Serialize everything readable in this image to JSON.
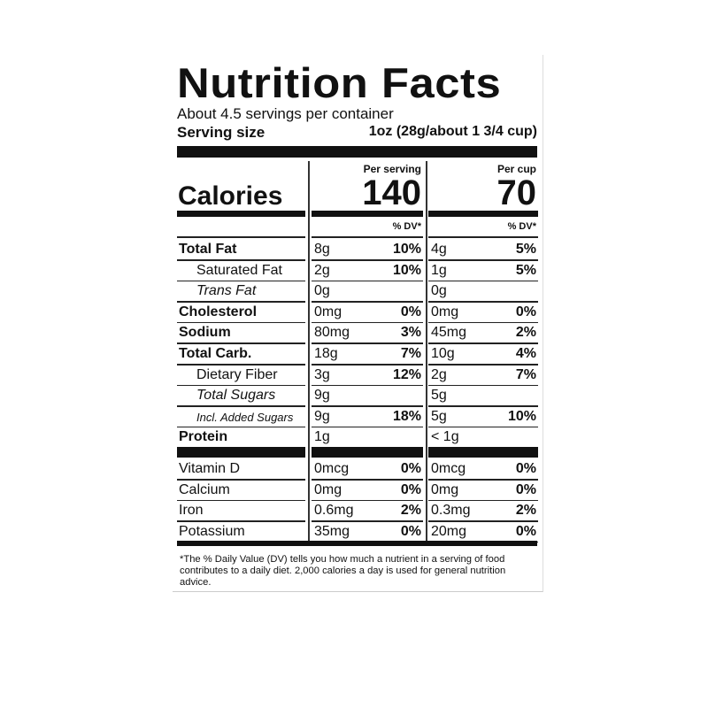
{
  "title": "Nutrition Facts",
  "servings": "About 4.5 servings per container",
  "serving_size_label": "Serving size",
  "serving_size": "1oz (28g/about 1 3/4 cup)",
  "calories_label": "Calories",
  "columns": [
    {
      "header": "Per serving",
      "calories": "140",
      "dv_header": "% DV*"
    },
    {
      "header": "Per cup",
      "calories": "70",
      "dv_header": "% DV*"
    }
  ],
  "rows": [
    {
      "name": "Total Fat",
      "style": "bold",
      "cells": [
        {
          "amount": "8g",
          "dv": "10%"
        },
        {
          "amount": "4g",
          "dv": "5%"
        }
      ]
    },
    {
      "name": "Saturated Fat",
      "style": "indent",
      "cells": [
        {
          "amount": "2g",
          "dv": "10%"
        },
        {
          "amount": "1g",
          "dv": "5%"
        }
      ]
    },
    {
      "name": "Trans Fat",
      "style": "indent-italic",
      "cells": [
        {
          "amount": "0g"
        },
        {
          "amount": "0g"
        }
      ]
    },
    {
      "name": "Cholesterol",
      "style": "bold",
      "cells": [
        {
          "amount": "0mg",
          "dv": "0%"
        },
        {
          "amount": "0mg",
          "dv": "0%"
        }
      ]
    },
    {
      "name": "Sodium",
      "style": "bold",
      "cells": [
        {
          "amount": "80mg",
          "dv": "3%"
        },
        {
          "amount": "45mg",
          "dv": "2%"
        }
      ]
    },
    {
      "name": "Total Carb.",
      "style": "bold",
      "cells": [
        {
          "amount": "18g",
          "dv": "7%"
        },
        {
          "amount": "10g",
          "dv": "4%"
        }
      ]
    },
    {
      "name": "Dietary Fiber",
      "style": "indent",
      "cells": [
        {
          "amount": "3g",
          "dv": "12%"
        },
        {
          "amount": "2g",
          "dv": "7%"
        }
      ]
    },
    {
      "name": "Total Sugars",
      "style": "indent-italic",
      "cells": [
        {
          "amount": "9g"
        },
        {
          "amount": "5g"
        }
      ]
    },
    {
      "name": "Incl. Added Sugars",
      "style": "indent-small",
      "cells": [
        {
          "amount": "9g",
          "dv": "18%"
        },
        {
          "amount": "5g",
          "dv": "10%"
        }
      ]
    },
    {
      "name": "Protein",
      "style": "bold",
      "cells": [
        {
          "amount": "1g"
        },
        {
          "amount": "< 1g"
        }
      ]
    }
  ],
  "vitamins": [
    {
      "name": "Vitamin D",
      "cells": [
        {
          "amount": "0mcg",
          "dv": "0%"
        },
        {
          "amount": "0mcg",
          "dv": "0%"
        }
      ]
    },
    {
      "name": "Calcium",
      "cells": [
        {
          "amount": "0mg",
          "dv": "0%"
        },
        {
          "amount": "0mg",
          "dv": "0%"
        }
      ]
    },
    {
      "name": "Iron",
      "cells": [
        {
          "amount": "0.6mg",
          "dv": "2%"
        },
        {
          "amount": "0.3mg",
          "dv": "2%"
        }
      ]
    },
    {
      "name": "Potassium",
      "cells": [
        {
          "amount": "35mg",
          "dv": "0%"
        },
        {
          "amount": "20mg",
          "dv": "0%"
        }
      ]
    }
  ],
  "footnote": "*The % Daily Value (DV) tells you how much a nutrient in a serving of food contributes to a daily diet. 2,000 calories a day is used for general nutrition advice."
}
